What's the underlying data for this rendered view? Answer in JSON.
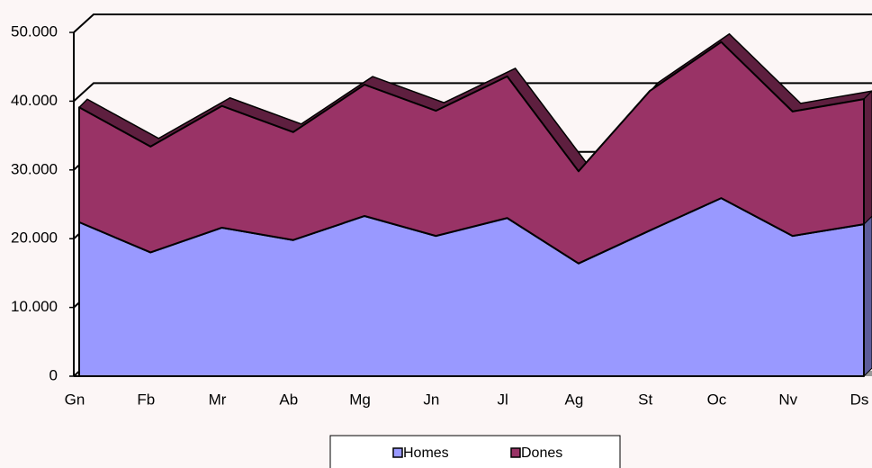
{
  "chart_data": {
    "type": "area",
    "categories": [
      "Gn",
      "Fb",
      "Mr",
      "Ab",
      "Mg",
      "Jn",
      "Jl",
      "Ag",
      "St",
      "Oc",
      "Nv",
      "Ds"
    ],
    "series": [
      {
        "name": "Homes",
        "color": "#9999ff",
        "values": [
          22400,
          18000,
          21600,
          19800,
          23300,
          20400,
          23000,
          16400,
          21200,
          25900,
          20400,
          22100
        ]
      },
      {
        "name": "Dones",
        "color": "#993366",
        "values": [
          16700,
          15400,
          17700,
          15700,
          19100,
          18200,
          20600,
          13400,
          20300,
          22700,
          18100,
          18200
        ]
      }
    ],
    "stacked": true,
    "ylim": [
      0,
      50000
    ],
    "yticks": [
      0,
      {
        "value": 10000,
        "label": "10.000"
      },
      {
        "value": 20000,
        "label": "20.000"
      },
      {
        "value": 30000,
        "label": "30.000"
      },
      {
        "value": 40000,
        "label": "40.000"
      },
      {
        "value": 50000,
        "label": "50.000"
      }
    ],
    "grid": true,
    "legend": "bottom"
  }
}
